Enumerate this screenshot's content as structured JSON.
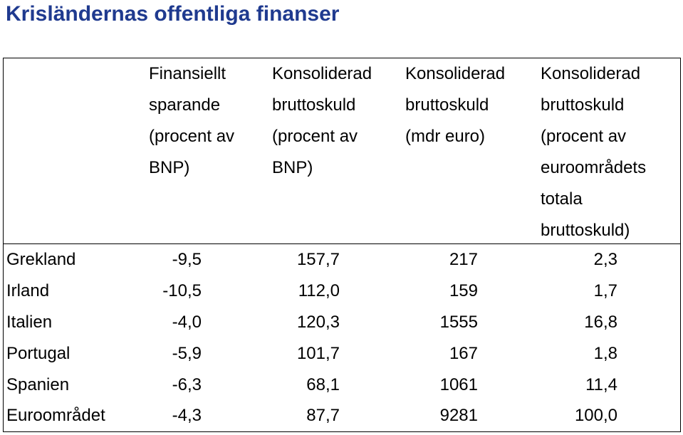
{
  "title": "Krisländernas offentliga finanser",
  "table": {
    "headers": [
      [
        "Finansiellt",
        "sparande",
        "(procent av",
        "BNP)"
      ],
      [
        "Konsoliderad",
        "bruttoskuld",
        "(procent av",
        "BNP)"
      ],
      [
        "Konsoliderad",
        "bruttoskuld",
        "(mdr euro)"
      ],
      [
        "Konsoliderad",
        "bruttoskuld",
        "(procent av",
        "euroområdets",
        "totala",
        "bruttoskuld)"
      ]
    ],
    "rows": [
      {
        "country": "Grekland",
        "values": [
          "-9,5",
          "157,7",
          "217",
          "2,3"
        ]
      },
      {
        "country": "Irland",
        "values": [
          "-10,5",
          "112,0",
          "159",
          "1,7"
        ]
      },
      {
        "country": "Italien",
        "values": [
          "-4,0",
          "120,3",
          "1555",
          "16,8"
        ]
      },
      {
        "country": "Portugal",
        "values": [
          "-5,9",
          "101,7",
          "167",
          "1,8"
        ]
      },
      {
        "country": "Spanien",
        "values": [
          "-6,3",
          "68,1",
          "1061",
          "11,4"
        ]
      },
      {
        "country": "Euroområdet",
        "values": [
          "-4,3",
          "87,7",
          "9281",
          "100,0"
        ]
      }
    ]
  },
  "colors": {
    "title": "#1F3A8F",
    "text": "#000000",
    "border": "#000000",
    "background": "#FFFFFF"
  }
}
